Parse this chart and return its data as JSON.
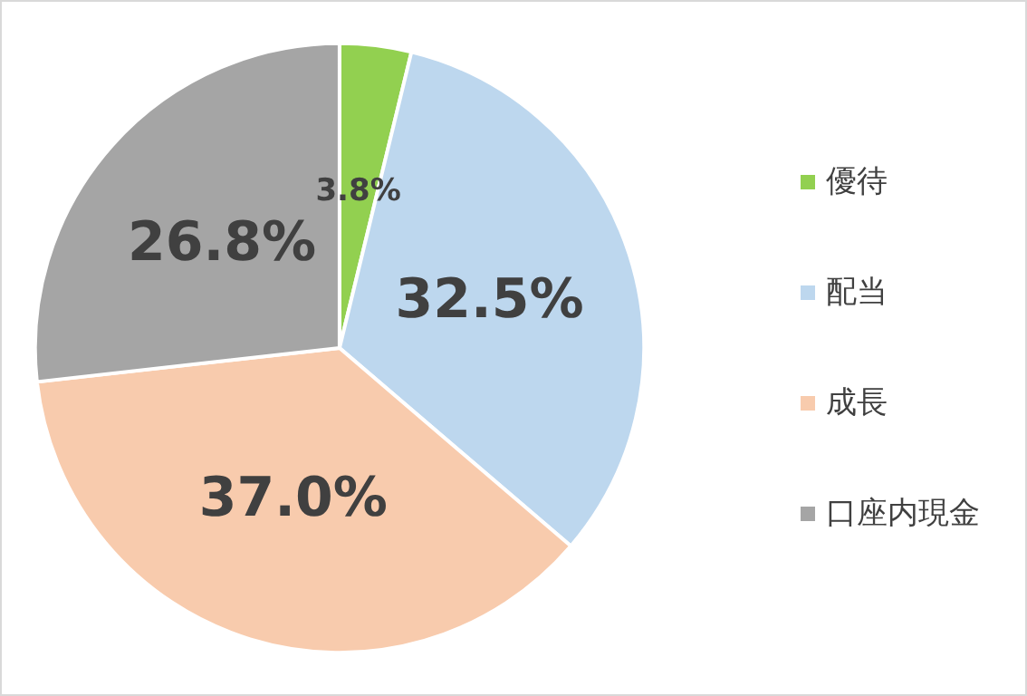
{
  "chart_data": {
    "type": "pie",
    "categories": [
      "優待",
      "配当",
      "成長",
      "口座内現金"
    ],
    "values": [
      3.8,
      32.5,
      37.0,
      26.8
    ],
    "colors": [
      "#92d050",
      "#bdd7ee",
      "#f8cbad",
      "#a5a5a5"
    ],
    "value_labels": [
      "3.8%",
      "32.5%",
      "37.0%",
      "26.8%"
    ],
    "legend": "right"
  }
}
